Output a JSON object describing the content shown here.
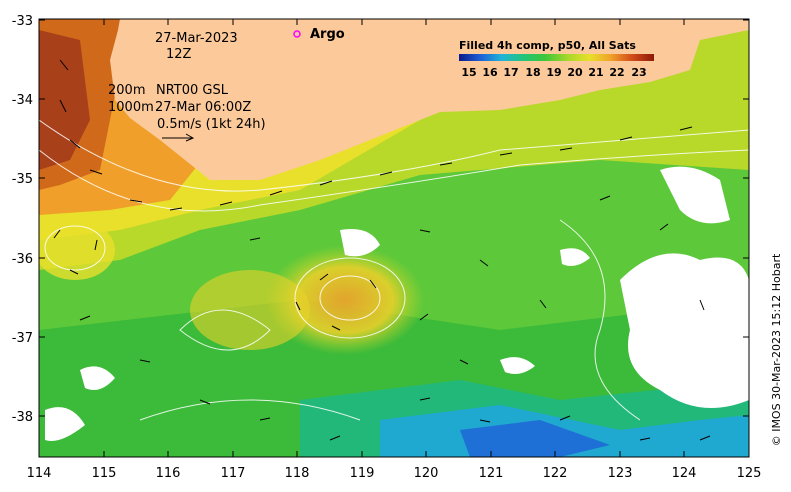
{
  "map": {
    "lon_ticks": [
      "114",
      "115",
      "116",
      "117",
      "118",
      "119",
      "120",
      "121",
      "122",
      "123",
      "124",
      "125"
    ],
    "lat_ticks": [
      "-33",
      "-34",
      "-35",
      "-36",
      "-37",
      "-38"
    ],
    "lon_range": [
      114,
      125
    ],
    "lat_range": [
      -38.55,
      -32.98
    ]
  },
  "annotations": {
    "date": "27-Mar-2023",
    "hour": "12Z",
    "contour_1": "200m",
    "contour_2": "1000m",
    "product": "NRT00 GSL",
    "product_time": "27-Mar 06:00Z",
    "arrow_scale": "0.5m/s (1kt 24h)"
  },
  "legend": {
    "title": "Filled 4h comp, p50, All Sats",
    "values": [
      "15",
      "16",
      "17",
      "18",
      "19",
      "20",
      "21",
      "22",
      "23"
    ],
    "colors": [
      "#0a1a8c",
      "#1e5fd6",
      "#1fb4d8",
      "#22c47a",
      "#3cc63a",
      "#a8d82a",
      "#e8e02a",
      "#f0a02a",
      "#d04a1a",
      "#8c1a0a"
    ]
  },
  "argo": {
    "label": "Argo",
    "marker_color": "#ff00ff"
  },
  "credit": "© IMOS 30-Mar-2023 15:12 Hobart",
  "colors": {
    "land": "#fcc99a",
    "frame": "#000000"
  }
}
